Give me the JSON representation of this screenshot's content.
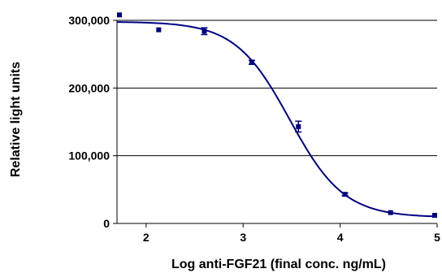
{
  "chart_data": {
    "type": "scatter",
    "xlabel": "Log anti-FGF21 (final conc. ng/mL)",
    "ylabel": "Relative light units",
    "xlim": [
      1.7,
      5.0
    ],
    "ylim": [
      0,
      300000
    ],
    "x_ticks": [
      2,
      3,
      4,
      5
    ],
    "x_tick_labels": [
      "2",
      "3",
      "4",
      "5"
    ],
    "y_ticks": [
      0,
      100000,
      200000,
      300000
    ],
    "y_tick_labels": [
      "0",
      "100,000",
      "200,000",
      "300,000"
    ],
    "grid": "horizontal",
    "series": [
      {
        "points": [
          {
            "x": 1.7,
            "y": 308000,
            "err": 0
          },
          {
            "x": 2.13,
            "y": 286000,
            "err": 0
          },
          {
            "x": 2.6,
            "y": 284000,
            "err": 5000
          },
          {
            "x": 3.09,
            "y": 238000,
            "err": 3000
          },
          {
            "x": 3.57,
            "y": 143000,
            "err": 8000
          },
          {
            "x": 4.05,
            "y": 43000,
            "err": 2000
          },
          {
            "x": 4.52,
            "y": 16000,
            "err": 0
          },
          {
            "x": 5.0,
            "y": 12000,
            "err": 0
          }
        ],
        "fit": {
          "model": "4PL",
          "bottom": 9000,
          "top": 298000,
          "log_ec50": 3.48,
          "hill": -1.55
        }
      }
    ],
    "colors": {
      "series": "#000080",
      "axis": "#000000",
      "grid": "#000000"
    }
  }
}
